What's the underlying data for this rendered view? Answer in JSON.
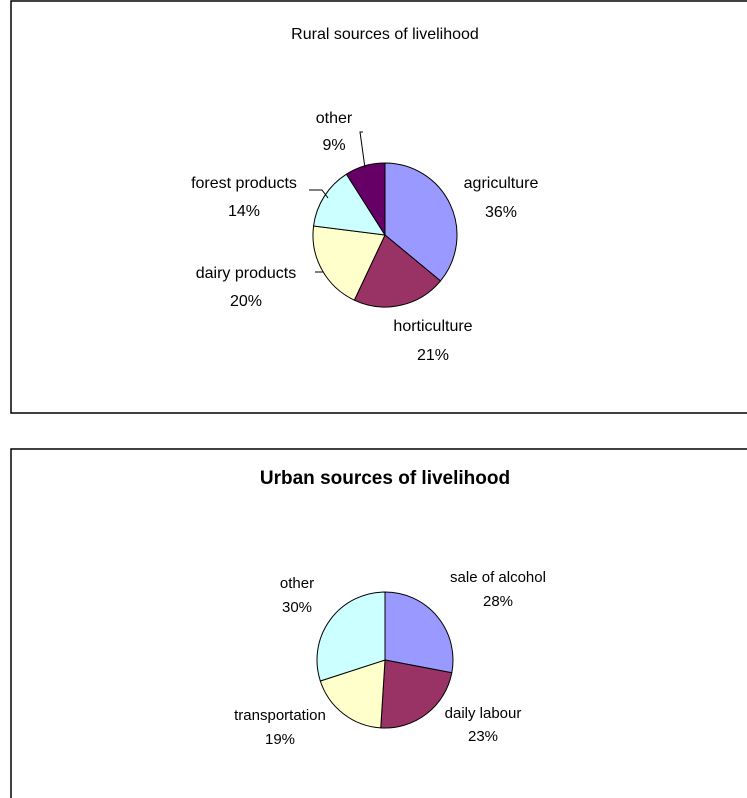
{
  "chart_data": [
    {
      "type": "pie",
      "title": "Rural sources of livelihood",
      "categories": [
        "agriculture",
        "horticulture",
        "dairy products",
        "forest products",
        "other"
      ],
      "values": [
        36,
        21,
        20,
        14,
        9
      ],
      "value_labels": [
        "36%",
        "21%",
        "20%",
        "14%",
        "9%"
      ],
      "colors": [
        "#9999FF",
        "#993366",
        "#FFFFCC",
        "#CCFFFF",
        "#660066"
      ],
      "legend": "none"
    },
    {
      "type": "pie",
      "title": "Urban sources of livelihood",
      "categories": [
        "sale of alcohol",
        "daily labour",
        "transportation",
        "other"
      ],
      "values": [
        28,
        23,
        19,
        30
      ],
      "value_labels": [
        "28%",
        "23%",
        "19%",
        "30%"
      ],
      "colors": [
        "#9999FF",
        "#993366",
        "#FFFFCC",
        "#CCFFFF"
      ],
      "legend": "none"
    }
  ]
}
